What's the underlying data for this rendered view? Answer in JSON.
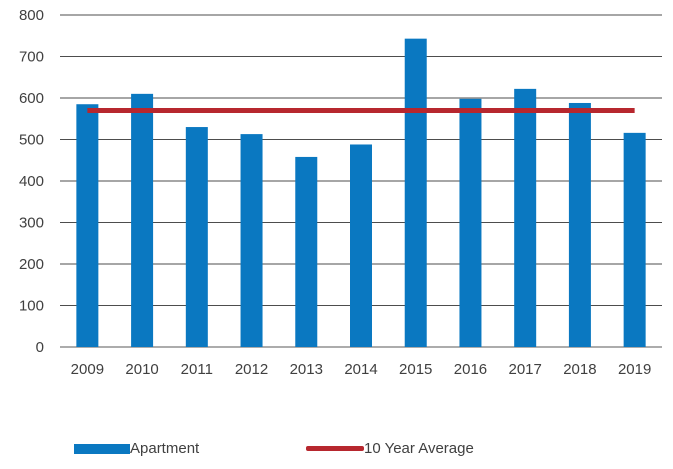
{
  "chart_data": {
    "type": "bar",
    "title": "",
    "xlabel": "",
    "ylabel": "",
    "categories": [
      "2009",
      "2010",
      "2011",
      "2012",
      "2013",
      "2014",
      "2015",
      "2016",
      "2017",
      "2018",
      "2019"
    ],
    "series": [
      {
        "name": "Apartment",
        "type": "bar",
        "color": "#0a78c1",
        "values": [
          585,
          610,
          530,
          513,
          458,
          488,
          743,
          598,
          622,
          588,
          516
        ]
      },
      {
        "name": "10 Year Average",
        "type": "line",
        "color": "#b7272e",
        "values": [
          570,
          570,
          570,
          570,
          570,
          570,
          570,
          570,
          570,
          570,
          570
        ]
      }
    ],
    "ylim": [
      0,
      800
    ],
    "yticks": [
      0,
      100,
      200,
      300,
      400,
      500,
      600,
      700,
      800
    ],
    "grid": true,
    "legend_position": "bottom"
  }
}
